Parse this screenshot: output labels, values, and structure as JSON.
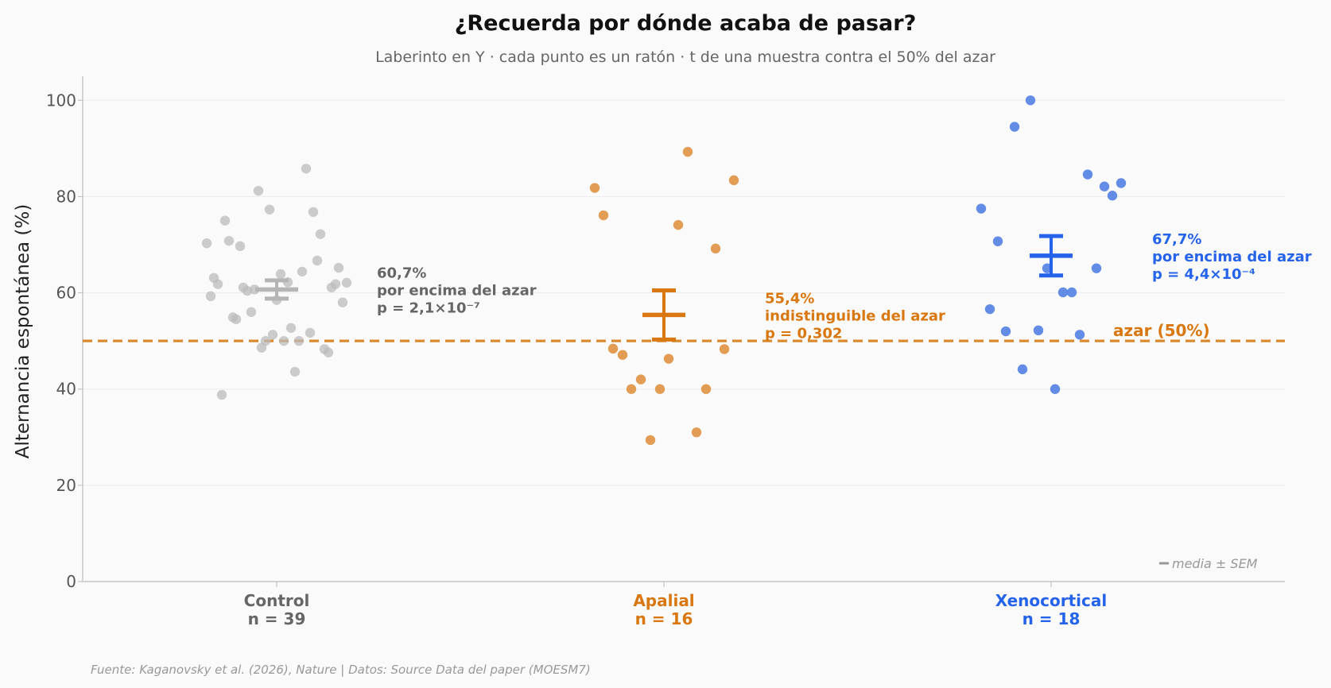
{
  "chart_data": {
    "type": "scatter",
    "title": "¿Recuerda por dónde acaba de pasar?",
    "subtitle": "Laberinto en Y · cada punto es un ratón · t de una muestra contra el 50% del azar",
    "ylabel": "Alternancia espontánea (%)",
    "xlabel": "",
    "ylim": [
      0,
      105
    ],
    "yticks": [
      0,
      20,
      40,
      60,
      80,
      100
    ],
    "grid": true,
    "chance": {
      "value": 50,
      "label": "azar (50%)",
      "color": "#d98a2e"
    },
    "error_bar_legend": "media ± SEM",
    "source": "Fuente: Kaganovsky et al. (2026), Nature | Datos: Source Data del paper (MOESM7)",
    "groups": [
      {
        "name": "Control",
        "n_label": "n = 39",
        "color": "#bbbbbb",
        "text_color": "#666666",
        "mean": 60.7,
        "sem": 1.9,
        "annotation": [
          "60,7%",
          "por encima del azar",
          "p = 2,1×10⁻⁷"
        ],
        "points": [
          70.3,
          63.1,
          59.3,
          61.8,
          75.0,
          38.8,
          70.8,
          54.9,
          54.5,
          69.7,
          61.1,
          60.4,
          56.0,
          60.7,
          81.2,
          48.6,
          50.0,
          77.3,
          51.3,
          58.5,
          63.9,
          50.0,
          62.2,
          52.7,
          43.6,
          50.0,
          64.4,
          85.8,
          51.7,
          76.8,
          66.7,
          72.2,
          48.3,
          47.6,
          61.1,
          61.8,
          65.2,
          58.0,
          62.1
        ]
      },
      {
        "name": "Apalial",
        "n_label": "n = 16",
        "color": "#e0974a",
        "text_color": "#d97710",
        "mean": 55.4,
        "sem": 5.1,
        "annotation": [
          "55,4%",
          "indistinguible del azar",
          "p = 0,302"
        ],
        "points": [
          81.8,
          76.1,
          48.4,
          47.1,
          40.0,
          42.0,
          29.4,
          40.0,
          46.3,
          74.1,
          89.3,
          31.0,
          40.0,
          69.2,
          48.3,
          83.4
        ]
      },
      {
        "name": "Xenocortical",
        "n_label": "n = 18",
        "color": "#5b86e5",
        "text_color": "#2563eb",
        "mean": 67.7,
        "sem": 4.1,
        "annotation": [
          "67,7%",
          "por encima del azar",
          "p = 4,4×10⁻⁴"
        ],
        "points": [
          77.5,
          56.6,
          70.7,
          52.0,
          94.5,
          44.1,
          100.0,
          52.2,
          65.1,
          40.0,
          60.1,
          60.1,
          51.3,
          84.6,
          65.1,
          82.1,
          80.2,
          82.8
        ]
      }
    ]
  }
}
